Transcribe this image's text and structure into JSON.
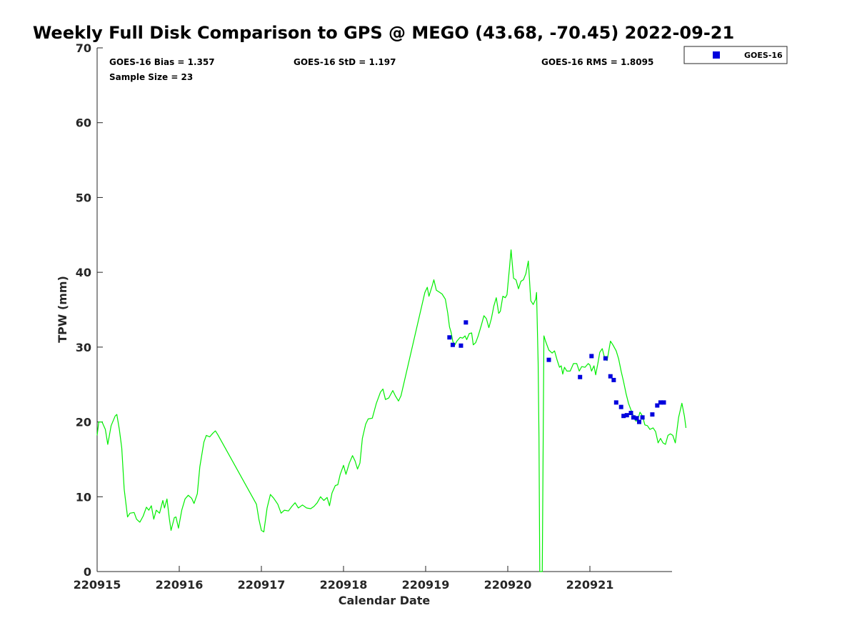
{
  "chart_data": {
    "type": "line+scatter",
    "title": "Weekly Full Disk Comparison to GPS @ MEGO (43.68, -70.45) 2022-09-21",
    "xlabel": "Calendar Date",
    "ylabel": "TPW (mm)",
    "xlim": [
      0,
      7
    ],
    "ylim": [
      0,
      70
    ],
    "x_ticks": [
      {
        "value": 0,
        "label": "220915"
      },
      {
        "value": 1,
        "label": "220916"
      },
      {
        "value": 2,
        "label": "220917"
      },
      {
        "value": 3,
        "label": "220918"
      },
      {
        "value": 4,
        "label": "220919"
      },
      {
        "value": 5,
        "label": "220920"
      },
      {
        "value": 6,
        "label": "220921"
      }
    ],
    "y_ticks": [
      0,
      10,
      20,
      30,
      40,
      50,
      60,
      70
    ],
    "stats": {
      "bias": "GOES-16 Bias = 1.357",
      "std": "GOES-16 StD = 1.197",
      "rms": "GOES-16 RMS = 1.8095",
      "sample": "Sample Size = 23"
    },
    "legend": {
      "position": "top-right-outside",
      "entries": [
        {
          "name": "GOES-16",
          "color": "#0000dd"
        }
      ]
    },
    "series": [
      {
        "name": "GPS",
        "style": "line",
        "color": "#00ee00",
        "points": [
          [
            0.0,
            18.2
          ],
          [
            0.02,
            20.0
          ],
          [
            0.06,
            20.0
          ],
          [
            0.1,
            19.0
          ],
          [
            0.13,
            17.0
          ],
          [
            0.17,
            19.5
          ],
          [
            0.22,
            20.8
          ],
          [
            0.24,
            21.0
          ],
          [
            0.27,
            19.0
          ],
          [
            0.3,
            16.5
          ],
          [
            0.33,
            11.0
          ],
          [
            0.37,
            7.3
          ],
          [
            0.4,
            7.8
          ],
          [
            0.45,
            7.9
          ],
          [
            0.48,
            7.0
          ],
          [
            0.52,
            6.6
          ],
          [
            0.56,
            7.4
          ],
          [
            0.6,
            8.6
          ],
          [
            0.63,
            8.2
          ],
          [
            0.66,
            8.8
          ],
          [
            0.69,
            7.0
          ],
          [
            0.72,
            8.2
          ],
          [
            0.76,
            7.8
          ],
          [
            0.8,
            9.5
          ],
          [
            0.82,
            8.5
          ],
          [
            0.85,
            9.7
          ],
          [
            0.88,
            7.0
          ],
          [
            0.9,
            5.5
          ],
          [
            0.94,
            7.2
          ],
          [
            0.96,
            7.3
          ],
          [
            0.99,
            5.8
          ],
          [
            1.03,
            8.2
          ],
          [
            1.07,
            9.7
          ],
          [
            1.11,
            10.2
          ],
          [
            1.15,
            9.8
          ],
          [
            1.18,
            9.1
          ],
          [
            1.22,
            10.4
          ],
          [
            1.25,
            14.0
          ],
          [
            1.3,
            17.3
          ],
          [
            1.33,
            18.2
          ],
          [
            1.37,
            18.0
          ],
          [
            1.41,
            18.5
          ],
          [
            1.44,
            18.8
          ],
          [
            1.47,
            18.3
          ],
          [
            1.94,
            9.0
          ],
          [
            1.97,
            7.0
          ],
          [
            2.0,
            5.5
          ],
          [
            2.03,
            5.3
          ],
          [
            2.07,
            8.5
          ],
          [
            2.11,
            10.3
          ],
          [
            2.15,
            9.8
          ],
          [
            2.2,
            9.0
          ],
          [
            2.24,
            7.8
          ],
          [
            2.28,
            8.2
          ],
          [
            2.33,
            8.1
          ],
          [
            2.37,
            8.7
          ],
          [
            2.41,
            9.2
          ],
          [
            2.45,
            8.5
          ],
          [
            2.5,
            8.9
          ],
          [
            2.55,
            8.5
          ],
          [
            2.6,
            8.4
          ],
          [
            2.64,
            8.7
          ],
          [
            2.68,
            9.2
          ],
          [
            2.72,
            10.0
          ],
          [
            2.76,
            9.5
          ],
          [
            2.8,
            9.9
          ],
          [
            2.83,
            8.8
          ],
          [
            2.86,
            10.5
          ],
          [
            2.9,
            11.5
          ],
          [
            2.93,
            11.6
          ],
          [
            2.96,
            13.0
          ],
          [
            3.0,
            14.2
          ],
          [
            3.03,
            13.0
          ],
          [
            3.07,
            14.5
          ],
          [
            3.11,
            15.5
          ],
          [
            3.14,
            14.8
          ],
          [
            3.17,
            13.7
          ],
          [
            3.2,
            14.5
          ],
          [
            3.23,
            17.8
          ],
          [
            3.27,
            19.7
          ],
          [
            3.3,
            20.4
          ],
          [
            3.35,
            20.5
          ],
          [
            3.4,
            22.5
          ],
          [
            3.45,
            24.0
          ],
          [
            3.48,
            24.4
          ],
          [
            3.51,
            23.0
          ],
          [
            3.55,
            23.2
          ],
          [
            3.6,
            24.2
          ],
          [
            3.63,
            23.5
          ],
          [
            3.67,
            22.8
          ],
          [
            3.7,
            23.5
          ],
          [
            3.99,
            37.3
          ],
          [
            4.02,
            38.0
          ],
          [
            4.04,
            36.8
          ],
          [
            4.08,
            38.2
          ],
          [
            4.1,
            39.0
          ],
          [
            4.13,
            37.6
          ],
          [
            4.16,
            37.4
          ],
          [
            4.2,
            37.1
          ],
          [
            4.24,
            36.4
          ],
          [
            4.27,
            34.5
          ],
          [
            4.29,
            32.7
          ],
          [
            4.31,
            32.0
          ],
          [
            4.33,
            30.8
          ],
          [
            4.35,
            30.2
          ],
          [
            4.38,
            30.8
          ],
          [
            4.42,
            31.3
          ],
          [
            4.45,
            31.2
          ],
          [
            4.48,
            31.5
          ],
          [
            4.5,
            31.0
          ],
          [
            4.53,
            31.8
          ],
          [
            4.56,
            31.9
          ],
          [
            4.58,
            30.3
          ],
          [
            4.61,
            30.6
          ],
          [
            4.64,
            31.5
          ],
          [
            4.68,
            33.0
          ],
          [
            4.71,
            34.2
          ],
          [
            4.74,
            33.8
          ],
          [
            4.77,
            32.6
          ],
          [
            4.8,
            33.8
          ],
          [
            4.83,
            35.5
          ],
          [
            4.86,
            36.6
          ],
          [
            4.89,
            34.5
          ],
          [
            4.91,
            34.8
          ],
          [
            4.94,
            36.8
          ],
          [
            4.97,
            36.6
          ],
          [
            4.99,
            37.0
          ],
          [
            5.02,
            40.5
          ],
          [
            5.04,
            43.0
          ],
          [
            5.07,
            39.2
          ],
          [
            5.1,
            39.0
          ],
          [
            5.13,
            37.8
          ],
          [
            5.16,
            38.8
          ],
          [
            5.19,
            39.0
          ],
          [
            5.22,
            39.8
          ],
          [
            5.25,
            41.5
          ],
          [
            5.28,
            36.2
          ],
          [
            5.31,
            35.7
          ],
          [
            5.34,
            36.4
          ],
          [
            5.35,
            37.3
          ],
          [
            5.37,
            28.0
          ],
          [
            5.38,
            18.0
          ],
          [
            5.39,
            0.0
          ],
          [
            5.42,
            0.0
          ],
          [
            5.43,
            15.0
          ],
          [
            5.44,
            31.5
          ],
          [
            5.46,
            30.8
          ],
          [
            5.5,
            29.6
          ],
          [
            5.54,
            29.2
          ],
          [
            5.57,
            29.5
          ],
          [
            5.6,
            28.3
          ],
          [
            5.63,
            27.3
          ],
          [
            5.65,
            27.5
          ],
          [
            5.67,
            26.4
          ],
          [
            5.69,
            27.3
          ],
          [
            5.72,
            26.8
          ],
          [
            5.76,
            26.8
          ],
          [
            5.8,
            27.8
          ],
          [
            5.84,
            27.8
          ],
          [
            5.87,
            26.8
          ],
          [
            5.9,
            27.4
          ],
          [
            5.94,
            27.3
          ],
          [
            5.98,
            27.8
          ],
          [
            6.0,
            27.6
          ],
          [
            6.02,
            26.8
          ],
          [
            6.05,
            27.5
          ],
          [
            6.07,
            26.3
          ],
          [
            6.1,
            28.0
          ],
          [
            6.12,
            29.3
          ],
          [
            6.15,
            29.8
          ],
          [
            6.18,
            28.5
          ],
          [
            6.21,
            28.2
          ],
          [
            6.25,
            30.8
          ],
          [
            6.28,
            30.3
          ],
          [
            6.32,
            29.5
          ],
          [
            6.35,
            28.4
          ],
          [
            6.38,
            26.8
          ],
          [
            6.41,
            25.4
          ],
          [
            6.44,
            23.8
          ],
          [
            6.47,
            22.5
          ],
          [
            6.5,
            21.6
          ],
          [
            6.53,
            20.8
          ],
          [
            6.56,
            20.1
          ],
          [
            6.58,
            20.2
          ],
          [
            6.61,
            21.3
          ],
          [
            6.64,
            20.8
          ],
          [
            6.67,
            19.6
          ],
          [
            6.7,
            19.5
          ],
          [
            6.73,
            19.0
          ],
          [
            6.77,
            19.2
          ],
          [
            6.8,
            18.7
          ],
          [
            6.83,
            17.2
          ],
          [
            6.86,
            17.8
          ],
          [
            6.89,
            17.2
          ],
          [
            6.92,
            17.0
          ],
          [
            6.95,
            18.2
          ],
          [
            6.98,
            18.4
          ],
          [
            7.01,
            18.2
          ],
          [
            7.04,
            17.2
          ],
          [
            7.08,
            20.6
          ],
          [
            7.12,
            22.5
          ],
          [
            7.15,
            20.8
          ],
          [
            7.17,
            19.2
          ]
        ]
      },
      {
        "name": "GOES-16",
        "style": "marker",
        "color": "#0000dd",
        "points": [
          [
            4.29,
            31.3
          ],
          [
            4.33,
            30.3
          ],
          [
            4.43,
            30.2
          ],
          [
            4.49,
            33.3
          ],
          [
            5.5,
            28.3
          ],
          [
            5.88,
            26.0
          ],
          [
            6.02,
            28.8
          ],
          [
            6.19,
            28.5
          ],
          [
            6.25,
            26.1
          ],
          [
            6.29,
            25.6
          ],
          [
            6.32,
            22.6
          ],
          [
            6.38,
            22.0
          ],
          [
            6.41,
            20.8
          ],
          [
            6.45,
            20.9
          ],
          [
            6.5,
            21.2
          ],
          [
            6.53,
            20.6
          ],
          [
            6.57,
            20.5
          ],
          [
            6.6,
            20.0
          ],
          [
            6.64,
            20.6
          ],
          [
            6.76,
            21.0
          ],
          [
            6.82,
            22.2
          ],
          [
            6.86,
            22.6
          ],
          [
            6.9,
            22.6
          ]
        ]
      }
    ]
  }
}
